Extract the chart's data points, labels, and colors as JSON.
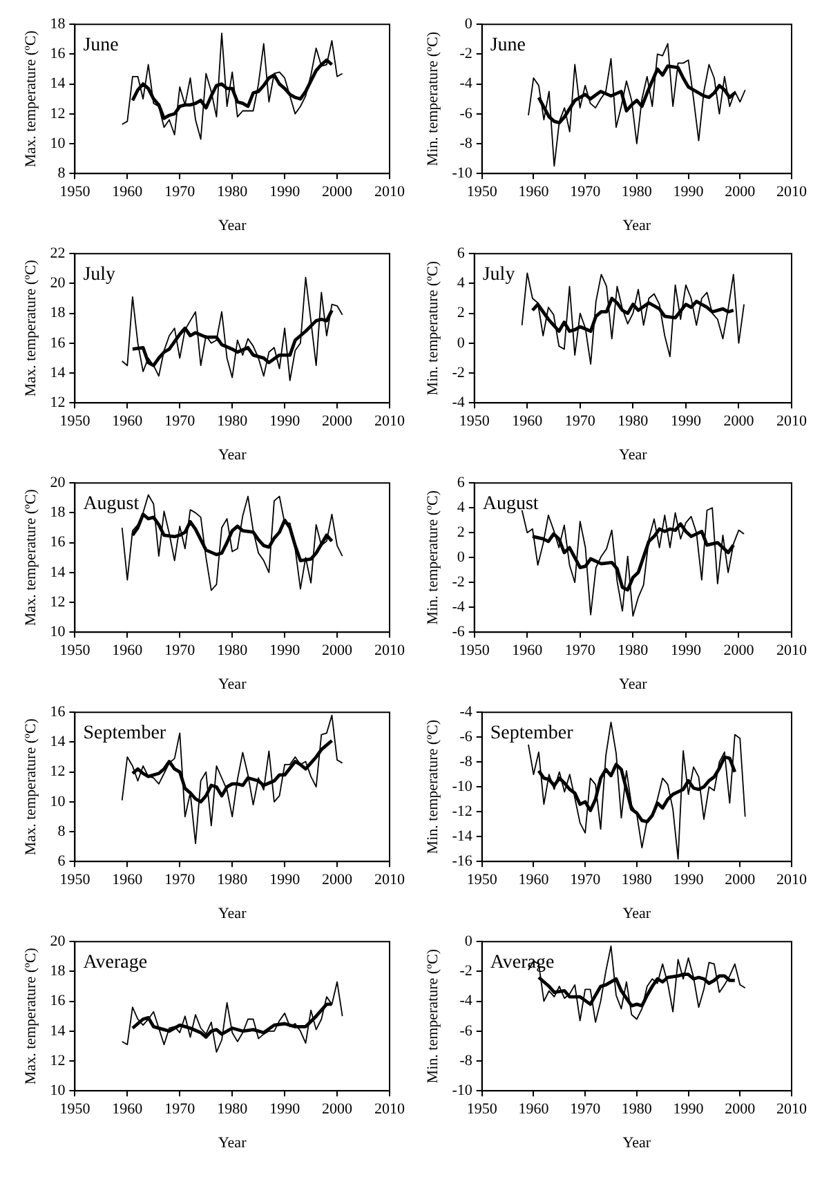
{
  "chart_data": [
    {
      "type": "line",
      "title": "June",
      "xlabel": "Year",
      "ylabel": "Max. temperature (ºC)",
      "xlim": [
        1950,
        2010
      ],
      "xticks": [
        1950,
        1960,
        1970,
        1980,
        1990,
        2000,
        2010
      ],
      "ylim": [
        8,
        18
      ],
      "yticks": [
        8,
        10,
        12,
        14,
        16,
        18
      ],
      "marker": "none",
      "series": [
        {
          "color": "#000000",
          "x": [
            1959,
            1960,
            1961,
            1962,
            1963,
            1964,
            1965,
            1966,
            1967,
            1968,
            1969,
            1970,
            1971,
            1972,
            1973,
            1974,
            1975,
            1976,
            1977,
            1978,
            1979,
            1980,
            1981,
            1982,
            1983,
            1984,
            1985,
            1986,
            1987,
            1988,
            1989,
            1990,
            1991,
            1992,
            1993,
            1994,
            1995,
            1996,
            1997,
            1998,
            1999,
            2000,
            2001
          ],
          "values": [
            11.3,
            11.5,
            14.5,
            14.5,
            13.0,
            15.3,
            12.7,
            12.5,
            11.1,
            11.6,
            10.6,
            13.8,
            12.6,
            14.4,
            11.6,
            10.3,
            14.7,
            13.5,
            11.8,
            17.4,
            12.5,
            14.8,
            11.8,
            12.2,
            12.2,
            12.2,
            14.0,
            16.7,
            12.8,
            14.7,
            14.8,
            14.4,
            13.2,
            12.0,
            12.5,
            13.2,
            14.6,
            16.4,
            15.2,
            15.3,
            16.9,
            14.5,
            14.7
          ]
        },
        {
          "color": "#000000",
          "x": [
            1961,
            1962,
            1963,
            1964,
            1965,
            1966,
            1967,
            1968,
            1969,
            1970,
            1971,
            1972,
            1973,
            1974,
            1975,
            1976,
            1977,
            1978,
            1979,
            1980,
            1981,
            1982,
            1983,
            1984,
            1985,
            1986,
            1987,
            1988,
            1989,
            1990,
            1991,
            1992,
            1993,
            1994,
            1995,
            1996,
            1997,
            1998,
            1999
          ],
          "values": [
            12.9,
            13.6,
            14.0,
            13.7,
            13.0,
            12.6,
            11.7,
            11.9,
            12.0,
            12.5,
            12.6,
            12.6,
            12.7,
            12.9,
            12.4,
            13.2,
            13.9,
            14.0,
            13.7,
            13.7,
            12.8,
            12.7,
            12.5,
            13.4,
            13.5,
            13.9,
            14.4,
            14.6,
            14.0,
            13.7,
            13.3,
            13.1,
            13.0,
            13.5,
            14.2,
            14.9,
            15.3,
            15.6,
            15.3
          ]
        }
      ]
    },
    {
      "type": "line",
      "title": "June",
      "xlabel": "Year",
      "ylabel": "Min. temperature (ºC)",
      "xlim": [
        1950,
        2010
      ],
      "xticks": [
        1950,
        1960,
        1970,
        1980,
        1990,
        2000,
        2010
      ],
      "ylim": [
        -10,
        0
      ],
      "yticks": [
        -10,
        -8,
        -6,
        -4,
        -2,
        0
      ],
      "marker": "none",
      "series": [
        {
          "color": "#000000",
          "x": [
            1959,
            1960,
            1961,
            1962,
            1963,
            1964,
            1965,
            1966,
            1967,
            1968,
            1969,
            1970,
            1971,
            1972,
            1973,
            1974,
            1975,
            1976,
            1977,
            1978,
            1979,
            1980,
            1981,
            1982,
            1983,
            1984,
            1985,
            1986,
            1987,
            1988,
            1989,
            1990,
            1991,
            1992,
            1993,
            1994,
            1995,
            1996,
            1997,
            1998,
            1999,
            2000,
            2001
          ],
          "values": [
            -6.1,
            -3.6,
            -4.1,
            -6.4,
            -4.5,
            -9.5,
            -6.5,
            -5.6,
            -7.2,
            -2.7,
            -5.6,
            -4.1,
            -5.3,
            -5.6,
            -5.0,
            -4.5,
            -2.3,
            -6.9,
            -5.5,
            -3.8,
            -5.1,
            -8.0,
            -5.0,
            -3.5,
            -5.5,
            -2.0,
            -2.1,
            -1.3,
            -5.5,
            -2.6,
            -2.6,
            -2.4,
            -5.0,
            -7.8,
            -4.5,
            -2.7,
            -3.6,
            -6.0,
            -3.5,
            -5.5,
            -4.5,
            -5.2,
            -4.4
          ]
        },
        {
          "color": "#000000",
          "x": [
            1961,
            1963,
            1964,
            1965,
            1966,
            1968,
            1970,
            1971,
            1973,
            1975,
            1977,
            1978,
            1979,
            1980,
            1981,
            1982,
            1984,
            1985,
            1986,
            1988,
            1989,
            1990,
            1991,
            1993,
            1994,
            1995,
            1996,
            1997,
            1998,
            1999
          ],
          "values": [
            -4.9,
            -6.2,
            -6.5,
            -6.6,
            -6.2,
            -5.1,
            -4.7,
            -5.0,
            -4.5,
            -4.8,
            -4.5,
            -5.8,
            -5.4,
            -5.1,
            -5.5,
            -4.6,
            -3.0,
            -3.4,
            -2.8,
            -2.9,
            -3.6,
            -4.2,
            -4.4,
            -4.8,
            -4.9,
            -4.6,
            -4.1,
            -4.4,
            -4.9,
            -4.6
          ]
        }
      ]
    },
    {
      "type": "line",
      "title": "July",
      "xlabel": "Year",
      "ylabel": "Max. temperature (ºC)",
      "xlim": [
        1950,
        2010
      ],
      "xticks": [
        1950,
        1960,
        1970,
        1980,
        1990,
        2000,
        2010
      ],
      "ylim": [
        12,
        22
      ],
      "yticks": [
        12,
        14,
        16,
        18,
        20,
        22
      ],
      "marker": "none",
      "series": [
        {
          "color": "#000000",
          "x": [
            1959,
            1960,
            1961,
            1962,
            1963,
            1964,
            1965,
            1966,
            1967,
            1968,
            1969,
            1970,
            1971,
            1972,
            1973,
            1974,
            1975,
            1976,
            1977,
            1978,
            1979,
            1980,
            1981,
            1982,
            1983,
            1984,
            1985,
            1986,
            1987,
            1988,
            1989,
            1990,
            1991,
            1992,
            1993,
            1994,
            1995,
            1996,
            1997,
            1998,
            1999,
            2000,
            2001
          ],
          "values": [
            14.8,
            14.5,
            19.1,
            16.0,
            14.1,
            15.0,
            14.5,
            13.8,
            15.5,
            16.5,
            17.0,
            15.0,
            16.9,
            17.5,
            18.1,
            14.5,
            16.5,
            16.0,
            16.2,
            18.1,
            15.0,
            13.7,
            16.2,
            15.2,
            16.3,
            15.8,
            15.0,
            13.8,
            15.4,
            15.7,
            14.3,
            17.0,
            13.5,
            15.5,
            16.0,
            20.4,
            17.5,
            14.5,
            19.4,
            16.5,
            18.6,
            18.5,
            17.9
          ]
        },
        {
          "color": "#000000",
          "x": [
            1961,
            1963,
            1964,
            1965,
            1966,
            1967,
            1968,
            1970,
            1971,
            1972,
            1973,
            1975,
            1977,
            1978,
            1980,
            1981,
            1983,
            1984,
            1986,
            1987,
            1989,
            1991,
            1992,
            1994,
            1996,
            1997,
            1998,
            1999
          ],
          "values": [
            15.6,
            15.7,
            14.7,
            14.5,
            15.0,
            15.4,
            15.6,
            16.6,
            17.0,
            16.5,
            16.7,
            16.4,
            16.4,
            15.9,
            15.6,
            15.4,
            15.7,
            15.2,
            15.0,
            14.7,
            15.2,
            15.2,
            16.2,
            16.8,
            17.5,
            17.6,
            17.5,
            18.2
          ]
        }
      ]
    },
    {
      "type": "line",
      "title": "July",
      "xlabel": "Year",
      "ylabel": "Min. temperature (ºC)",
      "xlim": [
        1950,
        2010
      ],
      "xticks": [
        1950,
        1960,
        1970,
        1980,
        1990,
        2000,
        2010
      ],
      "ylim": [
        -4,
        6
      ],
      "yticks": [
        -4,
        -2,
        0,
        2,
        4,
        6
      ],
      "marker": "none",
      "series": [
        {
          "color": "#000000",
          "x": [
            1959,
            1960,
            1961,
            1962,
            1963,
            1964,
            1965,
            1966,
            1967,
            1968,
            1969,
            1970,
            1971,
            1972,
            1973,
            1974,
            1975,
            1976,
            1977,
            1978,
            1979,
            1980,
            1981,
            1982,
            1983,
            1984,
            1985,
            1986,
            1987,
            1988,
            1989,
            1990,
            1991,
            1992,
            1993,
            1994,
            1995,
            1996,
            1997,
            1998,
            1999,
            2000,
            2001
          ],
          "values": [
            1.2,
            4.7,
            3.0,
            2.7,
            0.5,
            2.4,
            1.9,
            -0.2,
            -0.4,
            3.8,
            -0.8,
            2.0,
            1.0,
            -1.4,
            2.8,
            4.6,
            3.8,
            0.3,
            3.8,
            2.3,
            1.3,
            2.0,
            3.6,
            1.2,
            3.0,
            3.3,
            2.6,
            0.5,
            -0.9,
            3.9,
            1.6,
            3.9,
            3.0,
            1.2,
            3.0,
            3.4,
            2.0,
            1.6,
            0.3,
            2.3,
            4.6,
            0.0,
            2.6
          ]
        },
        {
          "color": "#000000",
          "x": [
            1961,
            1962,
            1964,
            1965,
            1966,
            1967,
            1968,
            1969,
            1970,
            1972,
            1973,
            1974,
            1975,
            1976,
            1977,
            1978,
            1979,
            1980,
            1981,
            1983,
            1985,
            1986,
            1988,
            1990,
            1991,
            1992,
            1994,
            1995,
            1997,
            1998,
            1999
          ],
          "values": [
            2.2,
            2.6,
            1.6,
            1.2,
            0.8,
            1.4,
            0.8,
            0.9,
            1.1,
            0.8,
            1.8,
            2.1,
            2.1,
            3.0,
            2.7,
            2.2,
            2.0,
            2.6,
            2.2,
            2.7,
            2.3,
            1.8,
            1.7,
            2.6,
            2.4,
            2.8,
            2.4,
            2.1,
            2.3,
            2.1,
            2.2
          ]
        }
      ]
    },
    {
      "type": "line",
      "title": "August",
      "xlabel": "Year",
      "ylabel": "Max. temperature (ºC)",
      "xlim": [
        1950,
        2010
      ],
      "xticks": [
        1950,
        1960,
        1970,
        1980,
        1990,
        2000,
        2010
      ],
      "ylim": [
        10,
        20
      ],
      "yticks": [
        10,
        12,
        14,
        16,
        18,
        20
      ],
      "marker": "none",
      "series": [
        {
          "color": "#000000",
          "x": [
            1959,
            1960,
            1961,
            1962,
            1963,
            1964,
            1965,
            1966,
            1967,
            1968,
            1969,
            1970,
            1971,
            1972,
            1973,
            1974,
            1975,
            1976,
            1977,
            1978,
            1979,
            1980,
            1981,
            1982,
            1983,
            1984,
            1985,
            1986,
            1987,
            1988,
            1989,
            1990,
            1991,
            1992,
            1993,
            1994,
            1995,
            1996,
            1997,
            1998,
            1999,
            2000,
            2001
          ],
          "values": [
            17.0,
            13.5,
            16.8,
            17.2,
            18.0,
            19.2,
            18.6,
            15.1,
            18.1,
            16.6,
            14.8,
            17.1,
            15.6,
            18.2,
            18.0,
            17.7,
            15.0,
            12.8,
            13.2,
            17.0,
            17.6,
            15.4,
            15.6,
            17.8,
            19.1,
            16.8,
            15.3,
            14.8,
            14.0,
            18.8,
            19.1,
            17.3,
            17.3,
            15.6,
            12.9,
            15.0,
            13.3,
            17.2,
            15.8,
            16.1,
            17.9,
            15.8,
            15.1
          ]
        },
        {
          "color": "#000000",
          "x": [
            1961,
            1962,
            1963,
            1964,
            1965,
            1966,
            1967,
            1969,
            1970,
            1971,
            1972,
            1973,
            1975,
            1977,
            1978,
            1979,
            1980,
            1981,
            1982,
            1984,
            1985,
            1986,
            1987,
            1988,
            1989,
            1990,
            1991,
            1992,
            1993,
            1995,
            1996,
            1998,
            1999
          ],
          "values": [
            16.5,
            17.0,
            17.9,
            17.6,
            17.7,
            17.2,
            16.5,
            16.4,
            16.5,
            16.7,
            17.4,
            16.9,
            15.5,
            15.2,
            15.3,
            16.0,
            16.8,
            17.1,
            16.8,
            16.7,
            16.2,
            15.8,
            15.7,
            16.3,
            16.7,
            17.5,
            17.0,
            15.8,
            14.8,
            14.9,
            15.3,
            16.5,
            16.1
          ]
        }
      ]
    },
    {
      "type": "line",
      "title": "August",
      "xlabel": "Year",
      "ylabel": "Min. temperature (ºC)",
      "xlim": [
        1950,
        2010
      ],
      "xticks": [
        1950,
        1960,
        1970,
        1980,
        1990,
        2000,
        2010
      ],
      "ylim": [
        -6,
        6
      ],
      "yticks": [
        -6,
        -4,
        -2,
        0,
        2,
        4,
        6
      ],
      "marker": "none",
      "series": [
        {
          "color": "#000000",
          "x": [
            1959,
            1960,
            1961,
            1962,
            1963,
            1964,
            1965,
            1966,
            1967,
            1968,
            1969,
            1970,
            1971,
            1972,
            1973,
            1974,
            1975,
            1976,
            1977,
            1978,
            1979,
            1980,
            1981,
            1982,
            1983,
            1984,
            1985,
            1986,
            1987,
            1988,
            1989,
            1990,
            1991,
            1992,
            1993,
            1994,
            1995,
            1996,
            1997,
            1998,
            1999,
            2000,
            2001
          ],
          "values": [
            3.8,
            2.0,
            2.3,
            -0.6,
            1.1,
            3.4,
            2.2,
            0.8,
            2.6,
            -0.6,
            -2.0,
            2.9,
            0.8,
            -4.6,
            -0.8,
            0.1,
            0.7,
            2.2,
            -1.9,
            -4.3,
            0.1,
            -4.7,
            -3.2,
            -2.2,
            1.5,
            3.1,
            0.8,
            3.4,
            0.8,
            3.6,
            1.5,
            2.8,
            3.3,
            2.0,
            -1.8,
            3.8,
            4.0,
            -2.1,
            1.8,
            -1.2,
            1.1,
            2.2,
            1.9
          ]
        },
        {
          "color": "#000000",
          "x": [
            1961,
            1963,
            1964,
            1965,
            1966,
            1967,
            1968,
            1970,
            1971,
            1972,
            1974,
            1976,
            1977,
            1978,
            1979,
            1980,
            1981,
            1983,
            1984,
            1985,
            1986,
            1987,
            1988,
            1989,
            1990,
            1991,
            1993,
            1994,
            1996,
            1998,
            1999
          ],
          "values": [
            1.7,
            1.5,
            1.3,
            1.9,
            1.5,
            0.4,
            0.8,
            -0.8,
            -0.7,
            -0.1,
            -0.5,
            -0.4,
            -0.9,
            -2.4,
            -2.6,
            -1.6,
            -1.2,
            1.3,
            1.7,
            2.3,
            2.1,
            2.3,
            2.2,
            2.7,
            2.1,
            1.7,
            2.1,
            1.0,
            1.2,
            0.4,
            1.0
          ]
        }
      ]
    },
    {
      "type": "line",
      "title": "September",
      "xlabel": "Year",
      "ylabel": "Max. temperature (ºC)",
      "xlim": [
        1950,
        2010
      ],
      "xticks": [
        1950,
        1960,
        1970,
        1980,
        1990,
        2000,
        2010
      ],
      "ylim": [
        6,
        16
      ],
      "yticks": [
        6,
        8,
        10,
        12,
        14,
        16
      ],
      "marker": "none",
      "series": [
        {
          "color": "#000000",
          "x": [
            1959,
            1960,
            1961,
            1962,
            1963,
            1964,
            1965,
            1966,
            1967,
            1968,
            1969,
            1970,
            1971,
            1972,
            1973,
            1974,
            1975,
            1976,
            1977,
            1978,
            1979,
            1980,
            1981,
            1982,
            1983,
            1984,
            1985,
            1986,
            1987,
            1988,
            1989,
            1990,
            1991,
            1992,
            1993,
            1994,
            1995,
            1996,
            1997,
            1998,
            1999,
            2000,
            2001
          ],
          "values": [
            10.1,
            13.0,
            12.4,
            11.4,
            12.4,
            11.7,
            11.6,
            11.2,
            11.9,
            12.6,
            12.9,
            14.6,
            9.0,
            10.6,
            7.2,
            11.4,
            12.0,
            8.4,
            12.4,
            11.6,
            10.8,
            9.0,
            11.5,
            13.3,
            11.8,
            9.8,
            11.6,
            10.8,
            13.4,
            10.0,
            10.4,
            12.5,
            12.5,
            13.0,
            12.5,
            12.7,
            11.7,
            11.0,
            14.5,
            14.6,
            15.8,
            12.8,
            12.6
          ]
        },
        {
          "color": "#000000",
          "x": [
            1961,
            1962,
            1963,
            1964,
            1966,
            1967,
            1968,
            1969,
            1970,
            1971,
            1972,
            1973,
            1974,
            1975,
            1976,
            1977,
            1978,
            1979,
            1980,
            1981,
            1982,
            1983,
            1985,
            1986,
            1988,
            1989,
            1990,
            1992,
            1993,
            1994,
            1995,
            1996,
            1997,
            1999
          ],
          "values": [
            11.9,
            12.2,
            11.9,
            11.7,
            11.9,
            12.2,
            12.7,
            12.2,
            12.0,
            10.9,
            10.6,
            10.2,
            10.0,
            10.4,
            11.1,
            11.0,
            10.4,
            11.0,
            11.2,
            11.2,
            11.1,
            11.6,
            11.4,
            11.1,
            11.4,
            11.8,
            11.8,
            12.7,
            12.5,
            12.2,
            12.6,
            13.0,
            13.5,
            14.1
          ]
        }
      ]
    },
    {
      "type": "line",
      "title": "September",
      "xlabel": "Year",
      "ylabel": "Min. temperature (ºC)",
      "xlim": [
        1950,
        2010
      ],
      "xticks": [
        1950,
        1960,
        1970,
        1980,
        1990,
        2000,
        2010
      ],
      "ylim": [
        -16,
        -4
      ],
      "yticks": [
        -16,
        -14,
        -12,
        -10,
        -8,
        -6,
        -4
      ],
      "marker": "none",
      "series": [
        {
          "color": "#000000",
          "x": [
            1959,
            1960,
            1961,
            1962,
            1963,
            1964,
            1965,
            1966,
            1967,
            1968,
            1969,
            1970,
            1971,
            1972,
            1973,
            1974,
            1975,
            1976,
            1977,
            1978,
            1979,
            1980,
            1981,
            1982,
            1983,
            1984,
            1985,
            1986,
            1987,
            1988,
            1989,
            1990,
            1991,
            1992,
            1993,
            1994,
            1995,
            1996,
            1997,
            1998,
            1999,
            2000,
            2001
          ],
          "values": [
            -6.6,
            -9.0,
            -7.2,
            -11.4,
            -9.0,
            -10.2,
            -8.8,
            -10.4,
            -9.0,
            -10.9,
            -12.9,
            -13.7,
            -9.3,
            -9.8,
            -13.4,
            -7.5,
            -4.8,
            -7.3,
            -12.5,
            -8.7,
            -11.5,
            -12.2,
            -14.9,
            -12.7,
            -12.3,
            -11.0,
            -9.3,
            -9.8,
            -11.8,
            -15.8,
            -7.1,
            -10.6,
            -8.4,
            -9.2,
            -12.6,
            -10.0,
            -10.3,
            -8.0,
            -7.2,
            -11.3,
            -5.8,
            -6.1,
            -12.4
          ]
        },
        {
          "color": "#000000",
          "x": [
            1961,
            1962,
            1963,
            1964,
            1965,
            1966,
            1967,
            1968,
            1969,
            1970,
            1971,
            1972,
            1973,
            1974,
            1975,
            1976,
            1977,
            1978,
            1979,
            1980,
            1981,
            1982,
            1983,
            1984,
            1985,
            1986,
            1987,
            1988,
            1989,
            1990,
            1991,
            1992,
            1993,
            1994,
            1995,
            1996,
            1997,
            1998,
            1999
          ],
          "values": [
            -8.7,
            -9.3,
            -9.4,
            -9.9,
            -9.3,
            -9.7,
            -10.2,
            -10.5,
            -11.4,
            -11.2,
            -11.9,
            -11.0,
            -9.3,
            -8.6,
            -9.1,
            -8.2,
            -8.6,
            -10.2,
            -11.8,
            -12.1,
            -12.7,
            -12.8,
            -12.3,
            -11.3,
            -11.7,
            -11.0,
            -10.6,
            -10.4,
            -10.2,
            -9.5,
            -10.1,
            -10.2,
            -10.0,
            -9.5,
            -9.2,
            -8.5,
            -7.6,
            -7.7,
            -8.8
          ]
        }
      ]
    },
    {
      "type": "line",
      "title": "Average",
      "xlabel": "Year",
      "ylabel": "Max. temperature (ºC)",
      "xlim": [
        1950,
        2010
      ],
      "xticks": [
        1950,
        1960,
        1970,
        1980,
        1990,
        2000,
        2010
      ],
      "ylim": [
        10,
        20
      ],
      "yticks": [
        10,
        12,
        14,
        16,
        18,
        20
      ],
      "marker": "none",
      "series": [
        {
          "color": "#000000",
          "x": [
            1959,
            1960,
            1961,
            1962,
            1963,
            1964,
            1965,
            1966,
            1967,
            1968,
            1969,
            1970,
            1971,
            1972,
            1973,
            1974,
            1975,
            1976,
            1977,
            1978,
            1979,
            1980,
            1981,
            1982,
            1983,
            1984,
            1985,
            1986,
            1987,
            1988,
            1989,
            1990,
            1991,
            1992,
            1993,
            1994,
            1995,
            1996,
            1997,
            1998,
            1999,
            2000,
            2001
          ],
          "values": [
            13.3,
            13.1,
            15.6,
            14.8,
            14.4,
            14.8,
            15.3,
            14.2,
            13.1,
            14.2,
            14.3,
            13.9,
            15.0,
            13.6,
            15.1,
            14.2,
            13.8,
            14.6,
            12.6,
            13.4,
            15.9,
            13.9,
            13.3,
            13.9,
            14.8,
            14.8,
            13.5,
            13.8,
            14.0,
            14.0,
            14.7,
            15.2,
            14.3,
            14.5,
            14.0,
            13.2,
            15.4,
            14.1,
            14.8,
            16.3,
            15.8,
            17.3,
            15.0
          ]
        },
        {
          "color": "#000000",
          "x": [
            1961,
            1963,
            1964,
            1965,
            1967,
            1968,
            1970,
            1972,
            1974,
            1975,
            1976,
            1977,
            1978,
            1980,
            1982,
            1984,
            1986,
            1988,
            1990,
            1992,
            1994,
            1996,
            1998,
            1999
          ],
          "values": [
            14.2,
            14.8,
            14.9,
            14.3,
            14.1,
            14.0,
            14.4,
            14.2,
            13.9,
            13.6,
            14.0,
            14.1,
            13.8,
            14.2,
            14.0,
            14.1,
            13.9,
            14.4,
            14.5,
            14.3,
            14.3,
            15.0,
            15.8,
            15.8
          ]
        }
      ]
    },
    {
      "type": "line",
      "title": "Average",
      "xlabel": "Year",
      "ylabel": "Min. temperature (ºC)",
      "xlim": [
        1950,
        2010
      ],
      "xticks": [
        1950,
        1960,
        1970,
        1980,
        1990,
        2000,
        2010
      ],
      "ylim": [
        -10,
        0
      ],
      "yticks": [
        -10,
        -8,
        -6,
        -4,
        -2,
        0
      ],
      "marker": "none",
      "series": [
        {
          "color": "#000000",
          "x": [
            1959,
            1960,
            1961,
            1962,
            1963,
            1964,
            1965,
            1966,
            1967,
            1968,
            1969,
            1970,
            1971,
            1972,
            1973,
            1974,
            1975,
            1976,
            1977,
            1978,
            1979,
            1980,
            1981,
            1982,
            1983,
            1984,
            1985,
            1986,
            1987,
            1988,
            1989,
            1990,
            1991,
            1992,
            1993,
            1994,
            1995,
            1996,
            1997,
            1998,
            1999,
            2000,
            2001
          ],
          "values": [
            -1.9,
            -1.3,
            -1.5,
            -4.0,
            -3.3,
            -3.7,
            -3.0,
            -3.8,
            -3.5,
            -2.9,
            -5.3,
            -3.2,
            -3.2,
            -5.4,
            -4.0,
            -2.0,
            -0.3,
            -3.6,
            -4.5,
            -2.7,
            -4.9,
            -5.2,
            -4.5,
            -3.0,
            -2.5,
            -2.8,
            -1.5,
            -2.8,
            -4.7,
            -1.2,
            -2.5,
            -1.1,
            -2.4,
            -4.4,
            -3.2,
            -1.4,
            -1.5,
            -3.4,
            -2.9,
            -2.3,
            -1.5,
            -2.9,
            -3.1
          ]
        },
        {
          "color": "#000000",
          "x": [
            1961,
            1963,
            1964,
            1966,
            1967,
            1969,
            1971,
            1973,
            1974,
            1976,
            1977,
            1978,
            1979,
            1980,
            1981,
            1982,
            1983,
            1984,
            1985,
            1986,
            1988,
            1989,
            1990,
            1991,
            1992,
            1993,
            1994,
            1995,
            1996,
            1997,
            1998,
            1999
          ],
          "values": [
            -2.4,
            -3.0,
            -3.4,
            -3.3,
            -3.7,
            -3.7,
            -4.2,
            -3.0,
            -2.9,
            -2.5,
            -3.3,
            -3.8,
            -4.3,
            -4.2,
            -4.3,
            -3.6,
            -3.0,
            -2.5,
            -2.7,
            -2.4,
            -2.3,
            -2.2,
            -2.2,
            -2.5,
            -2.4,
            -2.5,
            -2.8,
            -2.6,
            -2.3,
            -2.3,
            -2.6,
            -2.6
          ]
        }
      ]
    }
  ]
}
